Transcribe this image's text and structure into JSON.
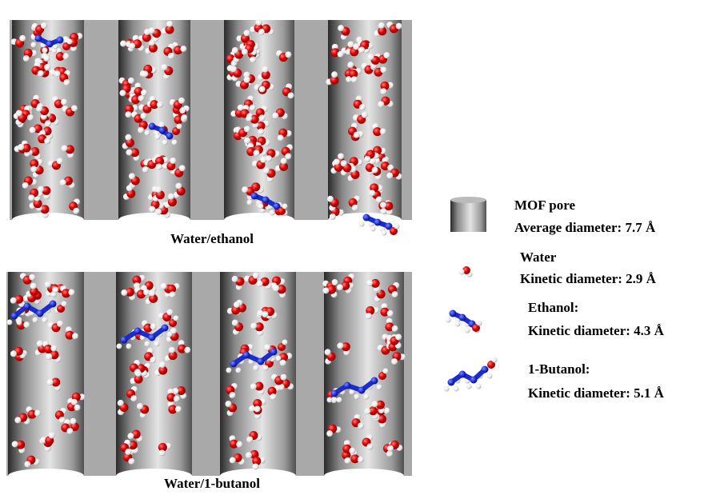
{
  "panels": [
    {
      "label": "Water/ethanol"
    },
    {
      "label": "Water/1-butanol"
    }
  ],
  "legend": [
    {
      "name": "MOF pore",
      "detail": "Average diameter: 7.7 Å"
    },
    {
      "name": "Water",
      "detail": "Kinetic diameter: 2.9 Å"
    },
    {
      "name": "Ethanol:",
      "detail": "Kinetic diameter: 4.3 Å"
    },
    {
      "name": "1-Butanol:",
      "detail": "Kinetic diameter: 5.1 Å"
    }
  ]
}
